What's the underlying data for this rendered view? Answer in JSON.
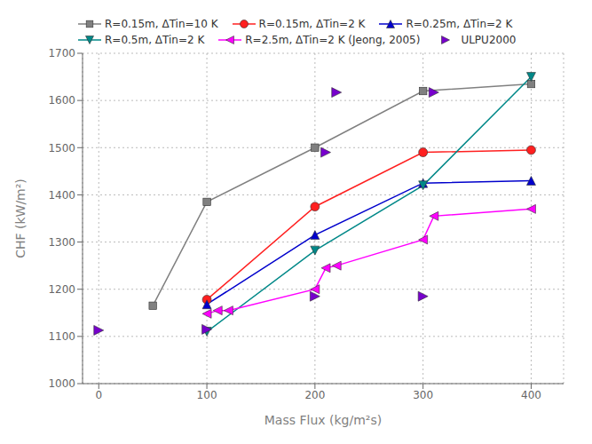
{
  "chart_data": {
    "type": "line",
    "xlabel": "Mass Flux (kg/m²s)",
    "ylabel": "CHF (kW/m²)",
    "xlim": [
      -15,
      430
    ],
    "ylim": [
      1000,
      1700
    ],
    "xticks": [
      0,
      100,
      200,
      300,
      400
    ],
    "yticks": [
      1000,
      1100,
      1200,
      1300,
      1400,
      1500,
      1600,
      1700
    ],
    "grid": true,
    "legend": "upper left",
    "series": [
      {
        "name": "R=0.15m, ΔTin=10 K",
        "color": "#808080",
        "marker": "square",
        "line_style": "solid",
        "x": [
          50,
          100,
          200,
          300,
          400
        ],
        "values": [
          1165,
          1385,
          1500,
          1620,
          1635
        ]
      },
      {
        "name": "R=0.15m, ΔTin=2 K",
        "color": "#ff2020",
        "marker": "circle",
        "line_style": "solid",
        "x": [
          100,
          200,
          300,
          400
        ],
        "values": [
          1178,
          1375,
          1490,
          1495
        ]
      },
      {
        "name": "R=0.25m, ΔTin=2 K",
        "color": "#0000cc",
        "marker": "triangle-up",
        "line_style": "solid",
        "x": [
          100,
          200,
          300,
          400
        ],
        "values": [
          1168,
          1315,
          1425,
          1430
        ]
      },
      {
        "name": "R=0.5m, ΔTin=2 K",
        "color": "#008888",
        "marker": "triangle-down",
        "line_style": "solid",
        "x": [
          100,
          200,
          300,
          400
        ],
        "values": [
          1110,
          1282,
          1420,
          1650
        ]
      },
      {
        "name": "R=2.5m, ΔTin=2 K (Jeong, 2005)",
        "color": "#ff00ff",
        "marker": "triangle-left",
        "line_style": "solid",
        "x": [
          100,
          110,
          120,
          200,
          210,
          220,
          300,
          310,
          400
        ],
        "values": [
          1148,
          1155,
          1155,
          1200,
          1245,
          1250,
          1305,
          1355,
          1370
        ]
      },
      {
        "name": "ULPU2000",
        "color": "#7700cc",
        "marker": "triangle-right",
        "line_style": "none",
        "x": [
          0,
          100,
          200,
          210,
          220,
          300,
          310
        ],
        "values": [
          1113,
          1115,
          1185,
          1490,
          1617,
          1185,
          1617
        ]
      }
    ]
  }
}
